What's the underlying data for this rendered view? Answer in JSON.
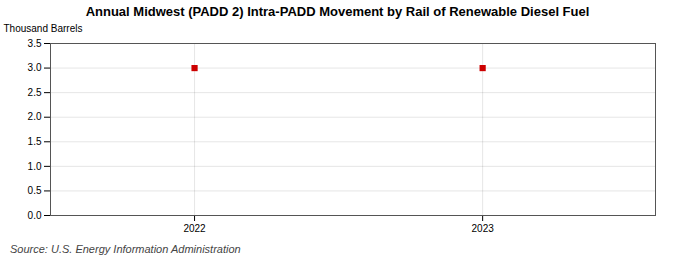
{
  "chart_data": {
    "type": "scatter",
    "title": "Annual Midwest (PADD 2) Intra-PADD Movement by Rail of Renewable Diesel Fuel",
    "ylabel": "Thousand Barrels",
    "source": "Source: U.S. Energy Information Administration",
    "x": [
      2022,
      2023
    ],
    "values": [
      3.0,
      3.0
    ],
    "color": "#cc0000",
    "marker": "square",
    "xlim": [
      2021.5,
      2023.6
    ],
    "xticks": [
      2022,
      2023
    ],
    "ylim": [
      0.0,
      3.5
    ],
    "yticks": [
      {
        "value": 0.0,
        "label": "0.0"
      },
      0.5,
      {
        "value": 1.0,
        "label": "1.0"
      },
      1.5,
      {
        "value": 2.0,
        "label": "2.0"
      },
      2.5,
      {
        "value": 3.0,
        "label": "3.0"
      },
      3.5
    ],
    "grid": true
  }
}
